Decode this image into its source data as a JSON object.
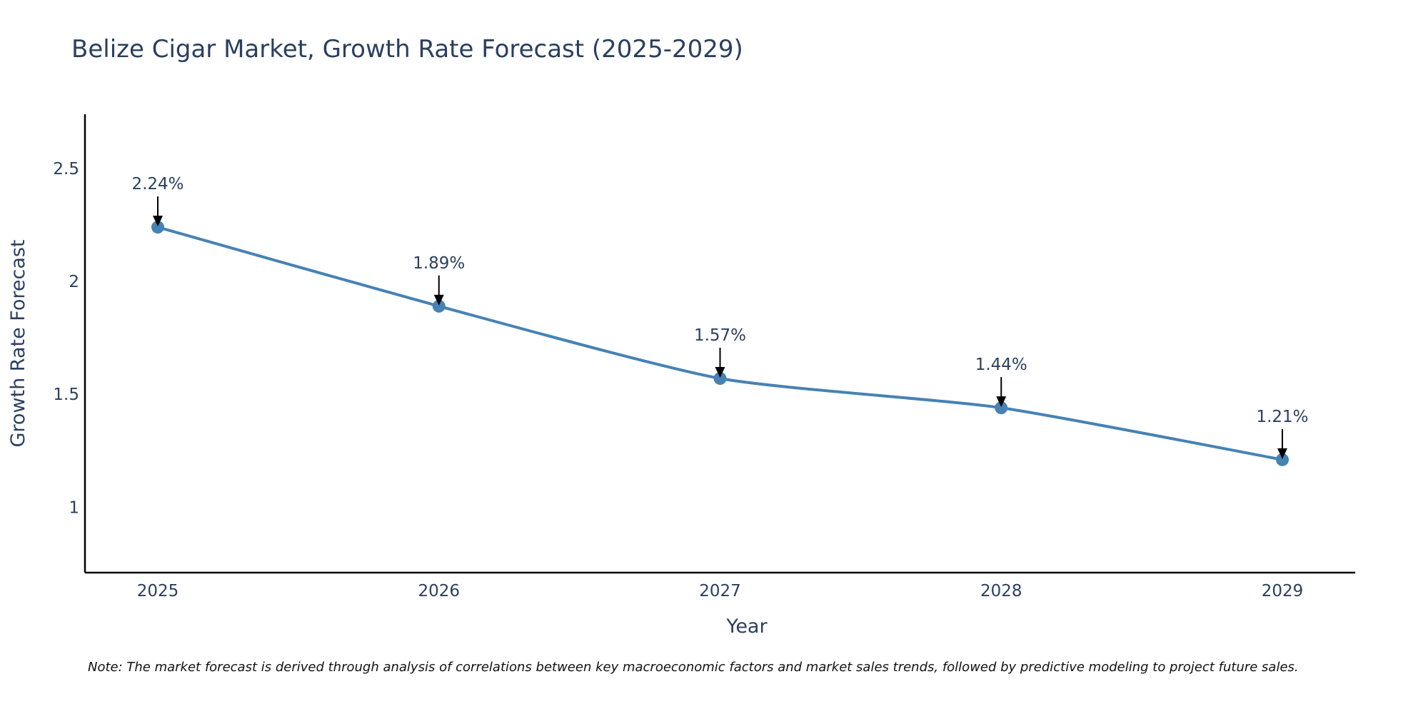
{
  "chart_data": {
    "type": "line",
    "title": "Belize Cigar Market, Growth Rate Forecast (2025-2029)",
    "xlabel": "Year",
    "ylabel": "Growth Rate Forecast",
    "categories": [
      "2025",
      "2026",
      "2027",
      "2028",
      "2029"
    ],
    "series": [
      {
        "name": "Growth Rate Forecast",
        "values": [
          2.24,
          1.89,
          1.57,
          1.44,
          1.21
        ],
        "labels": [
          "2.24%",
          "1.89%",
          "1.57%",
          "1.44%",
          "1.21%"
        ],
        "color": "#4682b4"
      }
    ],
    "ylim": [
      0.71,
      2.74
    ],
    "yticks": [
      1,
      1.5,
      2,
      2.5
    ],
    "ytick_labels": [
      "1",
      "1.5",
      "2",
      "2.5"
    ],
    "grid": false,
    "line_shape": "spline",
    "note": "Note: The market forecast is derived through analysis of correlations between key macroeconomic factors and market sales trends, followed by predictive modeling to project future sales."
  }
}
